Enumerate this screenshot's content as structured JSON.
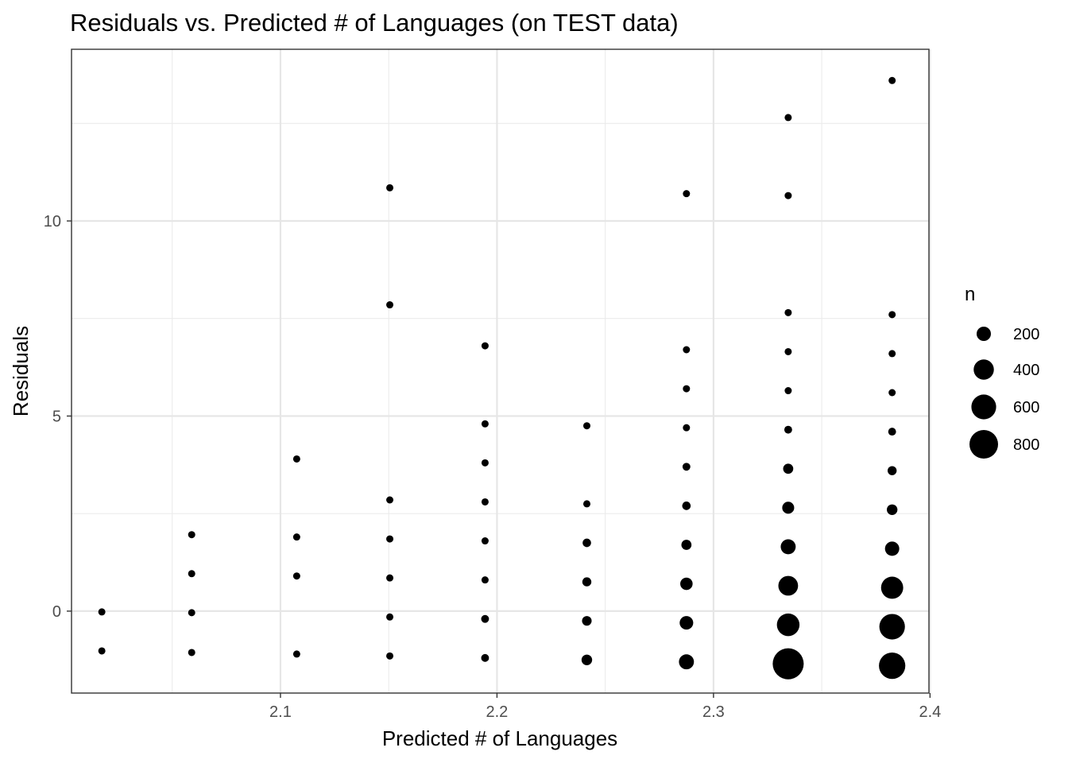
{
  "chart_data": {
    "type": "scatter",
    "title": "Residuals vs. Predicted # of Languages (on TEST data)",
    "xlabel": "Predicted # of Languages",
    "ylabel": "Residuals",
    "xlim": [
      2.0035,
      2.3995
    ],
    "ylim": [
      -2.1,
      14.4
    ],
    "x_ticks": [
      2.1,
      2.2,
      2.3,
      2.4
    ],
    "x_tick_labels": [
      "2.1",
      "2.2",
      "2.3",
      "2.4"
    ],
    "y_ticks": [
      0,
      5,
      10
    ],
    "y_tick_labels": [
      "0",
      "5",
      "10"
    ],
    "x_minor_ticks": [
      2.05,
      2.15,
      2.25,
      2.35
    ],
    "y_minor_ticks": [
      2.5,
      7.5,
      12.5
    ],
    "grid": true,
    "legend": {
      "title": "n",
      "placement": "right",
      "sizes": [
        200,
        400,
        600,
        800
      ],
      "labels": [
        "200",
        "400",
        "600",
        "800"
      ]
    },
    "points": [
      {
        "x": 2.0175,
        "y": -0.02,
        "n": 10
      },
      {
        "x": 2.0175,
        "y": -1.02,
        "n": 10
      },
      {
        "x": 2.059,
        "y": 1.96,
        "n": 10
      },
      {
        "x": 2.059,
        "y": 0.96,
        "n": 10
      },
      {
        "x": 2.059,
        "y": -0.04,
        "n": 10
      },
      {
        "x": 2.059,
        "y": -1.06,
        "n": 10
      },
      {
        "x": 2.1075,
        "y": 3.9,
        "n": 10
      },
      {
        "x": 2.1075,
        "y": 1.9,
        "n": 20
      },
      {
        "x": 2.1075,
        "y": 0.9,
        "n": 20
      },
      {
        "x": 2.1075,
        "y": -1.1,
        "n": 20
      },
      {
        "x": 2.1505,
        "y": 10.85,
        "n": 10
      },
      {
        "x": 2.1505,
        "y": 7.85,
        "n": 10
      },
      {
        "x": 2.1505,
        "y": 2.85,
        "n": 20
      },
      {
        "x": 2.1505,
        "y": 1.85,
        "n": 20
      },
      {
        "x": 2.1505,
        "y": 0.85,
        "n": 30
      },
      {
        "x": 2.1505,
        "y": -0.15,
        "n": 30
      },
      {
        "x": 2.1505,
        "y": -1.15,
        "n": 30
      },
      {
        "x": 2.1945,
        "y": 6.8,
        "n": 10
      },
      {
        "x": 2.1945,
        "y": 4.8,
        "n": 10
      },
      {
        "x": 2.1945,
        "y": 3.8,
        "n": 30
      },
      {
        "x": 2.1945,
        "y": 2.8,
        "n": 40
      },
      {
        "x": 2.1945,
        "y": 1.8,
        "n": 50
      },
      {
        "x": 2.1945,
        "y": 0.8,
        "n": 50
      },
      {
        "x": 2.1945,
        "y": -0.2,
        "n": 60
      },
      {
        "x": 2.1945,
        "y": -1.2,
        "n": 60
      },
      {
        "x": 2.2415,
        "y": 4.75,
        "n": 10
      },
      {
        "x": 2.2415,
        "y": 2.75,
        "n": 40
      },
      {
        "x": 2.2415,
        "y": 1.75,
        "n": 70
      },
      {
        "x": 2.2415,
        "y": 0.75,
        "n": 80
      },
      {
        "x": 2.2415,
        "y": -0.25,
        "n": 90
      },
      {
        "x": 2.2415,
        "y": -1.25,
        "n": 110
      },
      {
        "x": 2.2875,
        "y": 10.7,
        "n": 10
      },
      {
        "x": 2.2875,
        "y": 6.7,
        "n": 10
      },
      {
        "x": 2.2875,
        "y": 5.7,
        "n": 40
      },
      {
        "x": 2.2875,
        "y": 4.7,
        "n": 20
      },
      {
        "x": 2.2875,
        "y": 3.7,
        "n": 60
      },
      {
        "x": 2.2875,
        "y": 2.7,
        "n": 70
      },
      {
        "x": 2.2875,
        "y": 1.7,
        "n": 100
      },
      {
        "x": 2.2875,
        "y": 0.7,
        "n": 150
      },
      {
        "x": 2.2875,
        "y": -0.3,
        "n": 180
      },
      {
        "x": 2.2875,
        "y": -1.3,
        "n": 220
      },
      {
        "x": 2.3345,
        "y": 12.65,
        "n": 10
      },
      {
        "x": 2.3345,
        "y": 10.65,
        "n": 10
      },
      {
        "x": 2.3345,
        "y": 7.65,
        "n": 20
      },
      {
        "x": 2.3345,
        "y": 6.65,
        "n": 30
      },
      {
        "x": 2.3345,
        "y": 5.65,
        "n": 40
      },
      {
        "x": 2.3345,
        "y": 4.65,
        "n": 60
      },
      {
        "x": 2.3345,
        "y": 3.65,
        "n": 100
      },
      {
        "x": 2.3345,
        "y": 2.65,
        "n": 140
      },
      {
        "x": 2.3345,
        "y": 1.65,
        "n": 220
      },
      {
        "x": 2.3345,
        "y": 0.65,
        "n": 380
      },
      {
        "x": 2.3345,
        "y": -0.35,
        "n": 500
      },
      {
        "x": 2.3345,
        "y": -1.35,
        "n": 940
      },
      {
        "x": 2.3825,
        "y": 13.6,
        "n": 10
      },
      {
        "x": 2.3825,
        "y": 7.6,
        "n": 10
      },
      {
        "x": 2.3825,
        "y": 6.6,
        "n": 40
      },
      {
        "x": 2.3825,
        "y": 5.6,
        "n": 40
      },
      {
        "x": 2.3825,
        "y": 4.6,
        "n": 60
      },
      {
        "x": 2.3825,
        "y": 3.6,
        "n": 80
      },
      {
        "x": 2.3825,
        "y": 2.6,
        "n": 110
      },
      {
        "x": 2.3825,
        "y": 1.6,
        "n": 200
      },
      {
        "x": 2.3825,
        "y": 0.6,
        "n": 480
      },
      {
        "x": 2.3825,
        "y": -0.4,
        "n": 640
      },
      {
        "x": 2.3825,
        "y": -1.4,
        "n": 680
      }
    ]
  }
}
